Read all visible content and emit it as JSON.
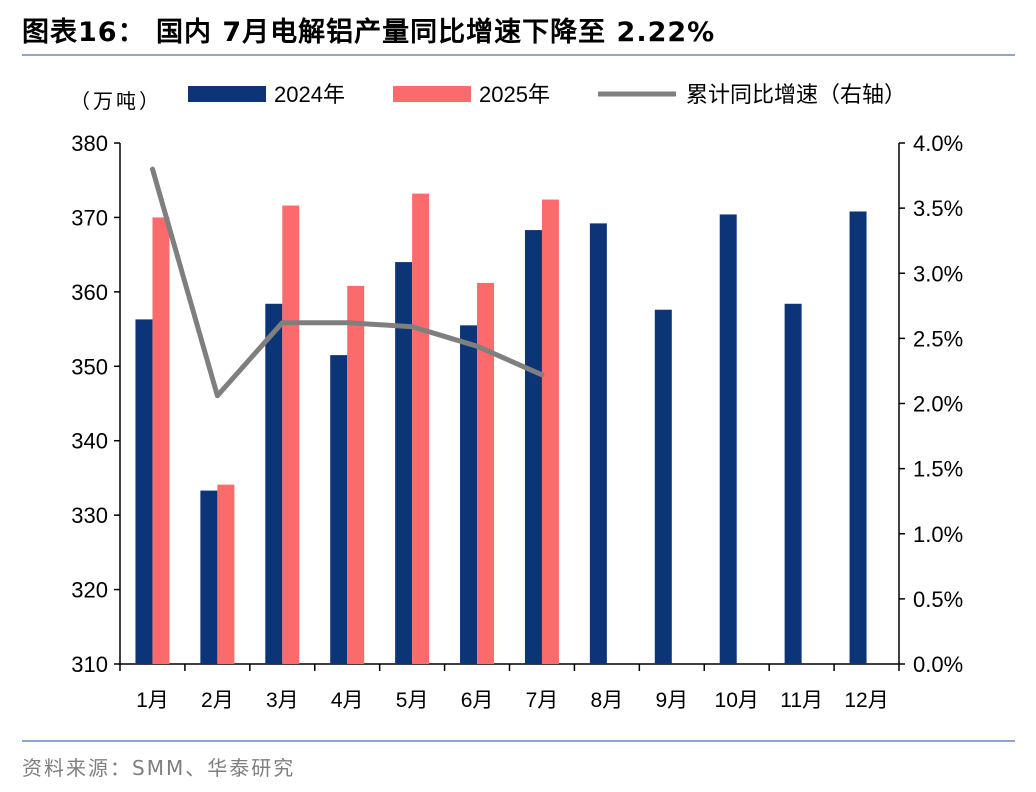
{
  "header": {
    "title": "图表16：  国内 7月电解铝产量同比增速下降至 2.22%"
  },
  "footer": {
    "source": "资料来源：SMM、华泰研究"
  },
  "colors": {
    "series_2024": "#0b3577",
    "series_2025": "#fc6b6b",
    "line": "#7f7f7f",
    "rule": "#8fa7c8"
  },
  "chart_data": {
    "type": "bar",
    "unit_label": "（万吨）",
    "categories": [
      "1月",
      "2月",
      "3月",
      "4月",
      "5月",
      "6月",
      "7月",
      "8月",
      "9月",
      "10月",
      "11月",
      "12月"
    ],
    "series": [
      {
        "name": "2024年",
        "kind": "bar",
        "axis": "left",
        "values": [
          356.3,
          333.3,
          358.4,
          351.5,
          364.0,
          355.5,
          368.3,
          369.2,
          357.6,
          370.4,
          358.4,
          370.8
        ]
      },
      {
        "name": "2025年",
        "kind": "bar",
        "axis": "left",
        "values": [
          370.0,
          334.1,
          371.6,
          360.8,
          373.2,
          361.2,
          372.4,
          null,
          null,
          null,
          null,
          null
        ]
      },
      {
        "name": "累计同比增速（右轴）",
        "kind": "line",
        "axis": "right",
        "values": [
          3.8,
          2.06,
          2.62,
          2.62,
          2.59,
          2.44,
          2.22,
          null,
          null,
          null,
          null,
          null
        ]
      }
    ],
    "left_axis": {
      "min": 310,
      "max": 380,
      "step": 10,
      "ticks": [
        "310",
        "320",
        "330",
        "340",
        "350",
        "360",
        "370",
        "380"
      ]
    },
    "right_axis": {
      "min": 0,
      "max": 4.0,
      "step": 0.5,
      "ticks": [
        "0.0%",
        "0.5%",
        "1.0%",
        "1.5%",
        "2.0%",
        "2.5%",
        "3.0%",
        "3.5%",
        "4.0%"
      ]
    },
    "legend_position": "top",
    "grid": false
  }
}
